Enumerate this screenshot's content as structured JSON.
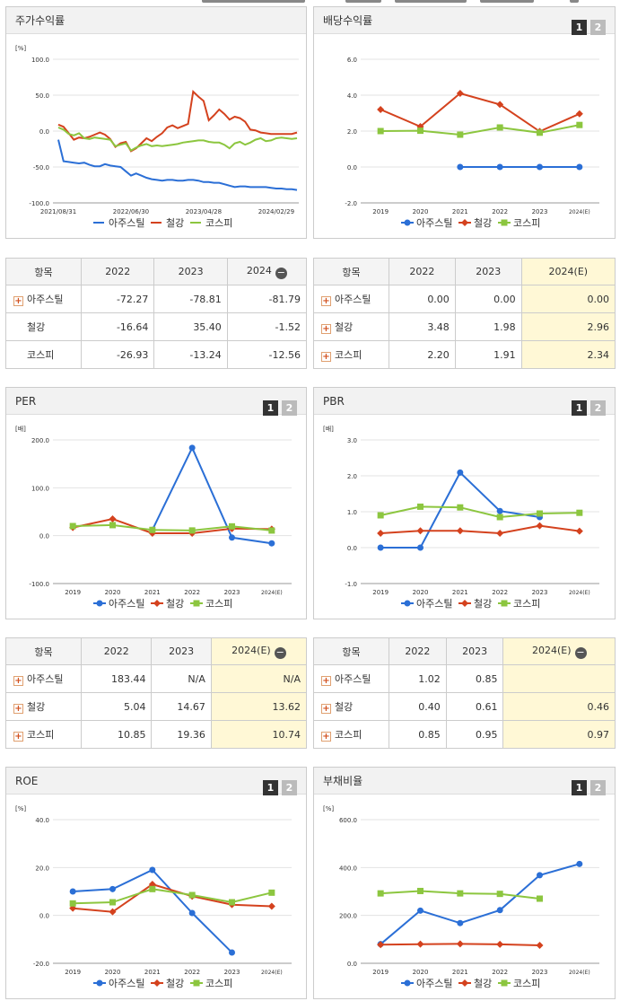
{
  "colors": {
    "series1": "#2b6fd6",
    "series2": "#d4421e",
    "series3": "#8cc63f"
  },
  "legend": [
    "아주스틸",
    "철강",
    "코스피"
  ],
  "btn1": "1",
  "btn2": "2",
  "panels": {
    "stock": {
      "title": "주가수익률"
    },
    "div": {
      "title": "배당수익률"
    },
    "per": {
      "title": "PER"
    },
    "pbr": {
      "title": "PBR"
    },
    "roe": {
      "title": "ROE"
    },
    "debt": {
      "title": "부채비율"
    }
  },
  "chart_data": [
    {
      "id": "stock",
      "type": "line",
      "title": "주가수익률",
      "unit": "[%]",
      "ylim": [
        -100,
        100
      ],
      "yticks": [
        "100.0",
        "50.0",
        "0.0",
        "-50.0",
        "-100.0"
      ],
      "xticks": [
        "2021/08/31",
        "2022/06/30",
        "2023/04/28",
        "2024/02/29"
      ],
      "series": [
        {
          "name": "아주스틸",
          "values": [
            -12,
            -42,
            -43,
            -44,
            -45,
            -44,
            -47,
            -49,
            -49,
            -46,
            -48,
            -49,
            -50,
            -56,
            -62,
            -59,
            -62,
            -65,
            -67,
            -68,
            -69,
            -68,
            -68,
            -69,
            -69,
            -68,
            -68,
            -69,
            -71,
            -71,
            -72,
            -72,
            -74,
            -76,
            -78,
            -77,
            -77,
            -78,
            -78,
            -78,
            -78,
            -79,
            -80,
            -80,
            -81,
            -81,
            -82
          ]
        },
        {
          "name": "철강",
          "values": [
            9,
            6,
            -3,
            -12,
            -9,
            -10,
            -8,
            -5,
            -2,
            -5,
            -11,
            -22,
            -17,
            -15,
            -28,
            -24,
            -17,
            -10,
            -14,
            -8,
            -3,
            5,
            8,
            4,
            7,
            10,
            55,
            48,
            42,
            15,
            22,
            30,
            24,
            16,
            20,
            18,
            13,
            2,
            1,
            -2,
            -3,
            -4,
            -4,
            -4,
            -4,
            -4,
            -2
          ]
        },
        {
          "name": "코스피",
          "values": [
            5,
            2,
            -4,
            -6,
            -3,
            -10,
            -11,
            -9,
            -10,
            -11,
            -12,
            -21,
            -19,
            -17,
            -27,
            -23,
            -20,
            -18,
            -21,
            -20,
            -21,
            -20,
            -19,
            -18,
            -16,
            -15,
            -14,
            -13,
            -13,
            -15,
            -16,
            -16,
            -19,
            -24,
            -17,
            -15,
            -19,
            -16,
            -12,
            -10,
            -14,
            -13,
            -10,
            -9,
            -10,
            -11,
            -10
          ]
        }
      ]
    },
    {
      "id": "div",
      "type": "line",
      "title": "배당수익률",
      "unit": "",
      "ylim": [
        -2,
        6
      ],
      "yticks": [
        "6.0",
        "4.0",
        "2.0",
        "0.0",
        "-2.0"
      ],
      "categories": [
        "2019",
        "2020",
        "2021",
        "2022",
        "2023",
        "2024(E)"
      ],
      "series": [
        {
          "name": "아주스틸",
          "values": [
            null,
            null,
            0.0,
            0.0,
            0.0,
            0.0
          ]
        },
        {
          "name": "철강",
          "values": [
            3.2,
            2.25,
            4.1,
            3.48,
            1.98,
            2.96
          ]
        },
        {
          "name": "코스피",
          "values": [
            2.0,
            2.02,
            1.8,
            2.2,
            1.91,
            2.34
          ]
        }
      ]
    },
    {
      "id": "per",
      "type": "line",
      "title": "PER",
      "unit": "[배]",
      "ylim": [
        -100,
        200
      ],
      "yticks": [
        "200.0",
        "100.0",
        "0.0",
        "-100.0"
      ],
      "categories": [
        "2019",
        "2020",
        "2021",
        "2022",
        "2023",
        "2024(E)"
      ],
      "series": [
        {
          "name": "아주스틸",
          "values": [
            null,
            null,
            12,
            183.44,
            -4,
            -16
          ]
        },
        {
          "name": "철강",
          "values": [
            17,
            35,
            5,
            5.04,
            14.67,
            13.62
          ]
        },
        {
          "name": "코스피",
          "values": [
            20,
            22,
            12,
            10.85,
            19.36,
            10.74
          ]
        }
      ]
    },
    {
      "id": "pbr",
      "type": "line",
      "title": "PBR",
      "unit": "[배]",
      "ylim": [
        -1,
        3
      ],
      "yticks": [
        "3.0",
        "2.0",
        "1.0",
        "0.0",
        "-1.0"
      ],
      "categories": [
        "2019",
        "2020",
        "2021",
        "2022",
        "2023",
        "2024(E)"
      ],
      "series": [
        {
          "name": "아주스틸",
          "values": [
            0.0,
            0.0,
            2.09,
            1.02,
            0.85,
            null
          ]
        },
        {
          "name": "철강",
          "values": [
            0.4,
            0.47,
            0.47,
            0.4,
            0.61,
            0.46
          ]
        },
        {
          "name": "코스피",
          "values": [
            0.9,
            1.14,
            1.12,
            0.85,
            0.95,
            0.97
          ]
        }
      ]
    },
    {
      "id": "roe",
      "type": "line",
      "title": "ROE",
      "unit": "[%]",
      "ylim": [
        -20,
        40
      ],
      "yticks": [
        "40.0",
        "20.0",
        "0.0",
        "-20.0"
      ],
      "categories": [
        "2019",
        "2020",
        "2021",
        "2022",
        "2023",
        "2024(E)"
      ],
      "series": [
        {
          "name": "아주스틸",
          "values": [
            10,
            11,
            19,
            1,
            -15.5,
            null
          ]
        },
        {
          "name": "철강",
          "values": [
            3,
            1.5,
            13,
            8,
            4.5,
            3.8
          ]
        },
        {
          "name": "코스피",
          "values": [
            5,
            5.5,
            11,
            8.5,
            5.5,
            9.5
          ]
        }
      ]
    },
    {
      "id": "debt",
      "type": "line",
      "title": "부채비율",
      "unit": "[%]",
      "ylim": [
        0,
        600
      ],
      "yticks": [
        "600.0",
        "400.0",
        "200.0",
        "0.0"
      ],
      "categories": [
        "2019",
        "2020",
        "2021",
        "2022",
        "2023",
        "2024(E)"
      ],
      "series": [
        {
          "name": "아주스틸",
          "values": [
            80,
            220,
            168,
            222,
            368,
            415
          ]
        },
        {
          "name": "철강",
          "values": [
            78,
            80,
            81,
            79,
            75,
            null
          ]
        },
        {
          "name": "코스피",
          "values": [
            292,
            302,
            292,
            290,
            270,
            null
          ]
        }
      ]
    }
  ],
  "tables": {
    "stock": {
      "headers": [
        "항목",
        "2022",
        "2023",
        "2024"
      ],
      "rows": [
        {
          "label": "아주스틸",
          "vals": [
            "-72.27",
            "-78.81",
            "-81.79"
          ]
        },
        {
          "label": "철강",
          "vals": [
            "-16.64",
            "35.40",
            "-1.52"
          ]
        },
        {
          "label": "코스피",
          "vals": [
            "-26.93",
            "-13.24",
            "-12.56"
          ]
        }
      ]
    },
    "div": {
      "headers": [
        "항목",
        "2022",
        "2023",
        "2024(E)"
      ],
      "rows": [
        {
          "label": "아주스틸",
          "vals": [
            "0.00",
            "0.00",
            "0.00"
          ]
        },
        {
          "label": "철강",
          "vals": [
            "3.48",
            "1.98",
            "2.96"
          ]
        },
        {
          "label": "코스피",
          "vals": [
            "2.20",
            "1.91",
            "2.34"
          ]
        }
      ]
    },
    "per": {
      "headers": [
        "항목",
        "2022",
        "2023",
        "2024(E)"
      ],
      "rows": [
        {
          "label": "아주스틸",
          "vals": [
            "183.44",
            "N/A",
            "N/A"
          ]
        },
        {
          "label": "철강",
          "vals": [
            "5.04",
            "14.67",
            "13.62"
          ]
        },
        {
          "label": "코스피",
          "vals": [
            "10.85",
            "19.36",
            "10.74"
          ]
        }
      ]
    },
    "pbr": {
      "headers": [
        "항목",
        "2022",
        "2023",
        "2024(E)"
      ],
      "rows": [
        {
          "label": "아주스틸",
          "vals": [
            "1.02",
            "0.85",
            ""
          ]
        },
        {
          "label": "철강",
          "vals": [
            "0.40",
            "0.61",
            "0.46"
          ]
        },
        {
          "label": "코스피",
          "vals": [
            "0.85",
            "0.95",
            "0.97"
          ]
        }
      ]
    }
  }
}
